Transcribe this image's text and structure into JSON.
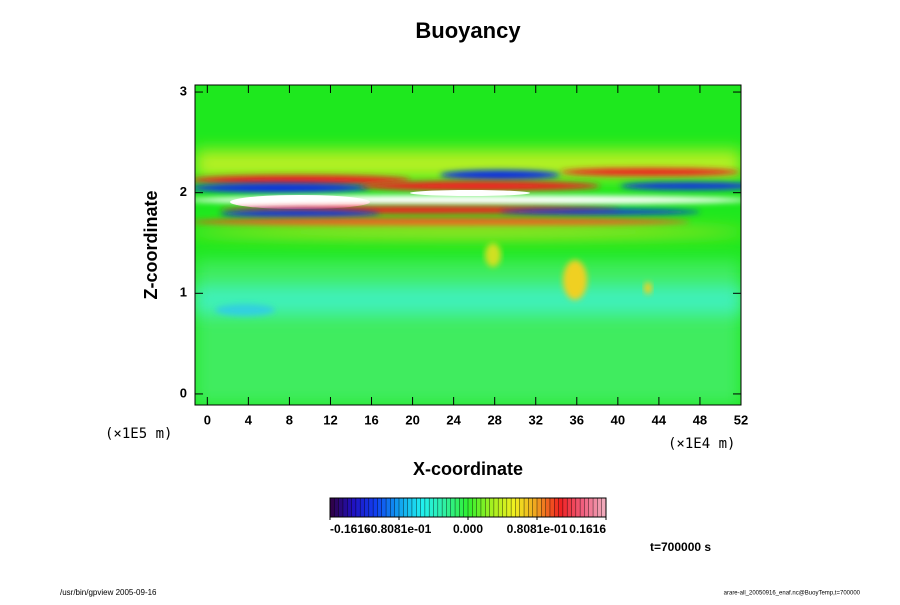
{
  "chart_data": {
    "type": "heatmap",
    "title": "Buoyancy",
    "x_label": "X-coordinate",
    "y_label": "Z-coordinate",
    "x_unit": "(×1E4 m)",
    "y_unit": "(×1E5 m)",
    "xlim": [
      -1.2,
      52
    ],
    "xticks": [
      0,
      4,
      8,
      12,
      16,
      20,
      24,
      28,
      32,
      36,
      40,
      44,
      48,
      52
    ],
    "ylim": [
      -0.11,
      3.07
    ],
    "yticks": [
      0,
      1,
      2,
      3
    ],
    "colorbar_lim": [
      -0.1616,
      0.1616
    ],
    "colorbar_ticks": [
      {
        "value": -0.1616,
        "label": "-0.1616"
      },
      {
        "value": -0.08081,
        "label": "-0.8081e-01"
      },
      {
        "value": 0,
        "label": "0.000"
      },
      {
        "value": 0.08081,
        "label": "0.8081e-01"
      },
      {
        "value": 0.1616,
        "label": "0.1616"
      }
    ],
    "colormap": [
      "#300040",
      "#2010c0",
      "#1040f0",
      "#10a0f0",
      "#20f0f0",
      "#30f0a0",
      "#30f030",
      "#a0f020",
      "#f0f020",
      "#f0a020",
      "#f02020",
      "#f06080",
      "#f0b0c0"
    ],
    "time_label": "t=700000 s",
    "footer_left": "/usr/bin/gpview 2005-09-16",
    "footer_right": "arare-all_20050916_enaf.nc@BuoyTemp,t=700000"
  }
}
